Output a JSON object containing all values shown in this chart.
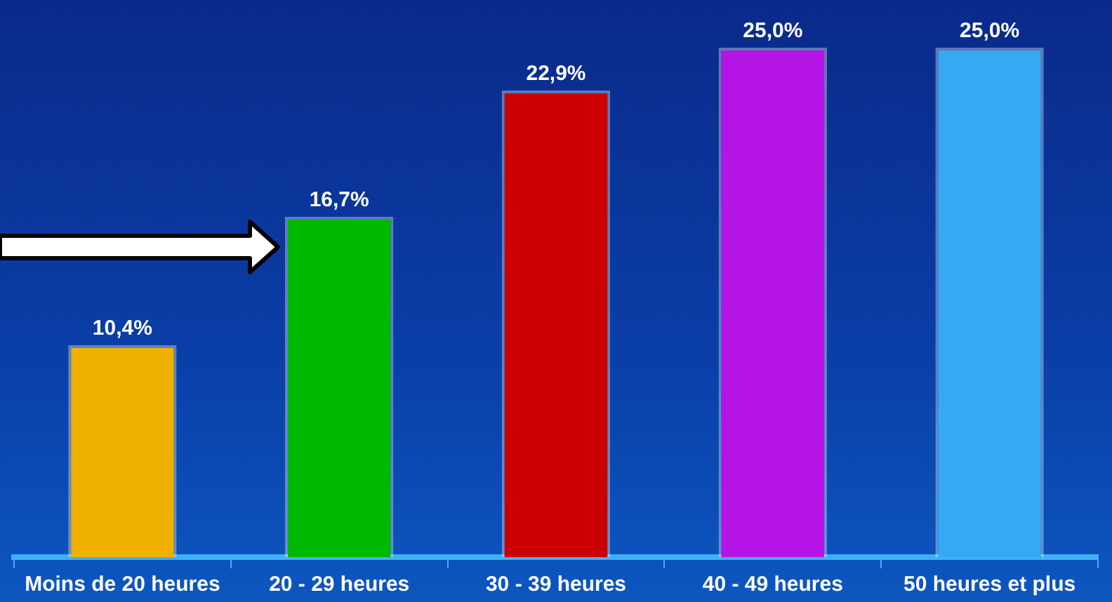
{
  "chart_data": {
    "type": "bar",
    "categories": [
      "Moins de 20 heures",
      "20 - 29 heures",
      "30 - 39 heures",
      "40 - 49 heures",
      "50 heures et plus"
    ],
    "values": [
      10.4,
      16.7,
      22.9,
      25.0,
      25.0
    ],
    "colors": [
      "#f0b000",
      "#00b800",
      "#cc0000",
      "#b414e6",
      "#36a8f4"
    ],
    "value_labels": [
      "10,4%",
      "16,7%",
      "22,9%",
      "25,0%",
      "25,0%"
    ],
    "grid": false,
    "legend": false
  }
}
